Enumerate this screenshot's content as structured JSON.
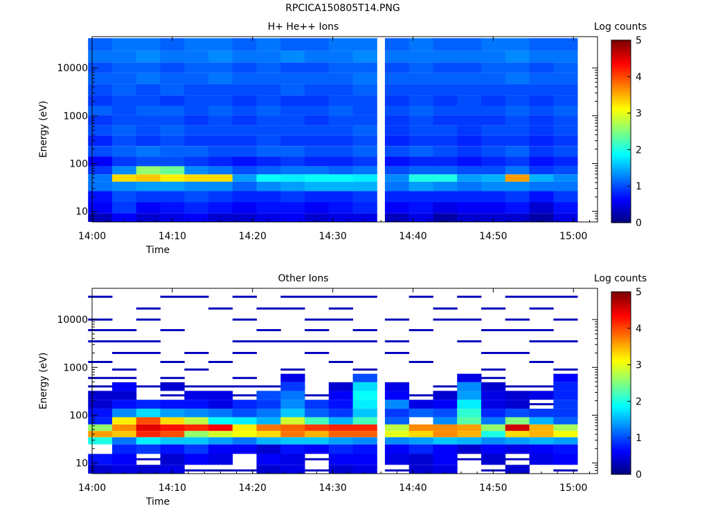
{
  "page": {
    "title": "RPCICA150805T14.PNG"
  },
  "chart_data": [
    {
      "type": "heatmap",
      "title": "H+ He++ Ions",
      "xlabel": "Time",
      "ylabel": "Energy (eV)",
      "colorbar_label": "Log counts",
      "colorbar_ticks": [
        "0",
        "1",
        "2",
        "3",
        "4",
        "5"
      ],
      "colorbar_range": [
        0,
        5
      ],
      "colormap": "jet",
      "x_ticks": [
        "14:00",
        "14:10",
        "14:20",
        "14:30",
        "14:40",
        "14:50",
        "15:00"
      ],
      "x_range": [
        "14:00",
        "15:03"
      ],
      "y_scale": "log",
      "y_range": [
        6,
        45000
      ],
      "y_ticks": [
        "10",
        "100",
        "1000",
        "10000"
      ],
      "time_bins": [
        "14:01",
        "14:04",
        "14:07",
        "14:10",
        "14:13",
        "14:16",
        "14:19",
        "14:22",
        "14:25",
        "14:28",
        "14:31",
        "14:34",
        "14:38",
        "14:41",
        "14:44",
        "14:47",
        "14:50",
        "14:53",
        "14:56",
        "14:59"
      ],
      "energy_bands": [
        {
          "energy": 7,
          "values": [
            0.3,
            0.6,
            0.4,
            0.5,
            0.6,
            0.4,
            0.4,
            0.5,
            0.6,
            0.4,
            0.5,
            0.5,
            0.3,
            0.5,
            0.2,
            0.4,
            0.4,
            0.4,
            0.2,
            0.5
          ]
        },
        {
          "energy": 12,
          "values": [
            0.6,
            0.9,
            0.6,
            0.7,
            0.8,
            0.7,
            0.6,
            0.7,
            0.7,
            0.6,
            0.7,
            0.8,
            0.6,
            0.7,
            0.5,
            0.6,
            0.6,
            0.7,
            0.4,
            0.7
          ]
        },
        {
          "energy": 20,
          "values": [
            0.7,
            1.0,
            0.9,
            0.9,
            1.0,
            0.9,
            0.8,
            0.8,
            0.9,
            0.8,
            0.8,
            0.9,
            0.8,
            0.8,
            0.8,
            0.8,
            0.8,
            0.9,
            0.7,
            0.9
          ]
        },
        {
          "energy": 35,
          "values": [
            1.2,
            1.3,
            1.4,
            1.4,
            1.3,
            1.3,
            1.1,
            1.3,
            1.4,
            1.5,
            1.5,
            1.5,
            1.2,
            1.4,
            1.3,
            1.2,
            1.3,
            1.3,
            1.2,
            1.2
          ]
        },
        {
          "energy": 50,
          "values": [
            1.2,
            3.3,
            3.4,
            3.2,
            3.3,
            3.3,
            1.4,
            1.9,
            1.8,
            1.9,
            1.9,
            1.8,
            1.3,
            2.0,
            2.0,
            1.4,
            1.5,
            3.6,
            1.5,
            1.3
          ]
        },
        {
          "energy": 70,
          "values": [
            0.9,
            1.3,
            2.6,
            2.4,
            1.3,
            1.2,
            1.0,
            1.1,
            1.2,
            1.2,
            1.1,
            1.2,
            1.0,
            1.1,
            1.1,
            1.0,
            1.0,
            1.2,
            0.9,
            1.0
          ]
        },
        {
          "energy": 110,
          "values": [
            0.6,
            0.9,
            1.0,
            1.0,
            0.9,
            0.8,
            0.7,
            0.8,
            0.9,
            0.8,
            0.8,
            0.9,
            0.7,
            0.8,
            0.8,
            0.7,
            0.8,
            0.9,
            0.7,
            0.8
          ]
        },
        {
          "energy": 180,
          "values": [
            1.0,
            1.1,
            1.2,
            1.1,
            1.1,
            1.0,
            1.0,
            1.1,
            1.1,
            1.0,
            1.0,
            1.1,
            1.0,
            1.1,
            1.0,
            0.9,
            1.0,
            1.1,
            0.9,
            1.0
          ]
        },
        {
          "energy": 300,
          "values": [
            0.8,
            1.0,
            0.9,
            1.0,
            0.9,
            0.9,
            0.9,
            1.0,
            0.9,
            0.9,
            0.9,
            1.0,
            0.8,
            0.9,
            0.9,
            0.8,
            0.9,
            0.9,
            0.8,
            0.9
          ]
        },
        {
          "energy": 500,
          "values": [
            1.0,
            1.1,
            1.0,
            1.1,
            1.0,
            1.0,
            1.0,
            1.0,
            1.0,
            1.0,
            1.0,
            1.1,
            0.9,
            1.0,
            1.0,
            0.9,
            1.0,
            1.0,
            0.9,
            1.0
          ]
        },
        {
          "energy": 800,
          "values": [
            0.9,
            1.0,
            1.0,
            1.0,
            0.9,
            1.0,
            0.9,
            1.0,
            1.0,
            0.9,
            1.0,
            1.0,
            0.9,
            1.0,
            0.9,
            0.9,
            0.9,
            1.0,
            0.9,
            1.0
          ]
        },
        {
          "energy": 1300,
          "values": [
            1.1,
            1.0,
            1.1,
            1.1,
            1.0,
            1.1,
            1.0,
            1.1,
            1.0,
            1.0,
            1.1,
            1.0,
            1.0,
            1.1,
            1.0,
            1.0,
            1.0,
            1.1,
            1.0,
            1.1
          ]
        },
        {
          "energy": 2000,
          "values": [
            0.9,
            1.0,
            1.0,
            0.9,
            1.0,
            1.0,
            0.9,
            1.0,
            0.9,
            0.9,
            1.0,
            1.0,
            0.9,
            1.0,
            0.9,
            1.0,
            0.9,
            1.0,
            0.9,
            1.0
          ]
        },
        {
          "energy": 3500,
          "values": [
            1.0,
            1.1,
            1.0,
            1.1,
            1.0,
            1.0,
            1.0,
            1.0,
            1.1,
            1.0,
            1.0,
            1.1,
            1.0,
            1.0,
            1.0,
            1.0,
            1.0,
            1.0,
            1.0,
            1.0
          ]
        },
        {
          "energy": 6000,
          "values": [
            1.1,
            1.1,
            1.2,
            1.1,
            1.1,
            1.2,
            1.1,
            1.1,
            1.1,
            1.1,
            1.1,
            1.2,
            1.1,
            1.1,
            1.1,
            1.1,
            1.1,
            1.2,
            1.1,
            1.1
          ]
        },
        {
          "energy": 10000,
          "values": [
            1.0,
            1.1,
            1.1,
            1.0,
            1.1,
            1.1,
            1.0,
            1.1,
            1.0,
            1.0,
            1.1,
            1.1,
            1.0,
            1.1,
            1.0,
            1.0,
            1.1,
            1.1,
            1.0,
            1.1
          ]
        },
        {
          "energy": 17000,
          "values": [
            1.2,
            1.2,
            1.3,
            1.2,
            1.2,
            1.3,
            1.2,
            1.2,
            1.3,
            1.2,
            1.2,
            1.3,
            1.2,
            1.2,
            1.2,
            1.2,
            1.2,
            1.3,
            1.2,
            1.2
          ]
        },
        {
          "energy": 30000,
          "values": [
            1.1,
            1.2,
            1.2,
            1.1,
            1.2,
            1.2,
            1.1,
            1.2,
            1.1,
            1.1,
            1.2,
            1.2,
            1.1,
            1.2,
            1.1,
            1.1,
            1.2,
            1.2,
            1.1,
            1.1
          ]
        }
      ]
    },
    {
      "type": "heatmap",
      "title": "Other Ions",
      "xlabel": "Time",
      "ylabel": "Energy (eV)",
      "colorbar_label": "Log counts",
      "colorbar_ticks": [
        "0",
        "1",
        "2",
        "3",
        "4",
        "5"
      ],
      "colorbar_range": [
        0,
        5
      ],
      "colormap": "jet",
      "x_ticks": [
        "14:00",
        "14:10",
        "14:20",
        "14:30",
        "14:40",
        "14:50",
        "15:00"
      ],
      "x_range": [
        "14:00",
        "15:03"
      ],
      "y_scale": "log",
      "y_range": [
        6,
        45000
      ],
      "y_ticks": [
        "10",
        "100",
        "1000",
        "10000"
      ],
      "time_bins": [
        "14:01",
        "14:04",
        "14:07",
        "14:10",
        "14:13",
        "14:16",
        "14:19",
        "14:22",
        "14:25",
        "14:28",
        "14:31",
        "14:34",
        "14:38",
        "14:41",
        "14:44",
        "14:47",
        "14:50",
        "14:53",
        "14:56",
        "14:59"
      ],
      "energy_bands": [
        {
          "energy": 7,
          "values": [
            0.4,
            0.5,
            0.4,
            0.5,
            0.3,
            0.2,
            0.3,
            0.4,
            0.5,
            0.3,
            0.4,
            0.5,
            0.3,
            0.4,
            0.5,
            null,
            0.3,
            0.4,
            null,
            0.3
          ]
        },
        {
          "energy": 12,
          "values": [
            0.7,
            0.6,
            0.3,
            0.4,
            0.6,
            0.5,
            null,
            0.6,
            0.5,
            0.3,
            0.6,
            0.6,
            0.5,
            0.4,
            0.6,
            0.3,
            0.4,
            0.3,
            0.5,
            0.6
          ]
        },
        {
          "energy": 20,
          "values": [
            null,
            0.8,
            0.9,
            0.7,
            0.9,
            0.6,
            0.6,
            0.4,
            0.7,
            0.6,
            0.8,
            0.7,
            0.6,
            0.8,
            0.6,
            0.4,
            0.6,
            0.5,
            0.6,
            0.7
          ]
        },
        {
          "energy": 30,
          "values": [
            2.0,
            1.2,
            1.8,
            1.6,
            1.6,
            1.4,
            1.2,
            1.5,
            1.6,
            1.6,
            1.4,
            1.3,
            1.3,
            1.4,
            1.6,
            1.5,
            1.3,
            1.4,
            1.5,
            1.4
          ]
        },
        {
          "energy": 40,
          "values": [
            3.6,
            3.4,
            4.2,
            4.0,
            2.6,
            2.9,
            3.1,
            3.3,
            3.8,
            3.5,
            3.9,
            3.9,
            3.0,
            3.3,
            3.7,
            3.5,
            2.0,
            3.3,
            3.5,
            3.1
          ]
        },
        {
          "energy": 55,
          "values": [
            2.6,
            3.7,
            4.5,
            4.3,
            4.2,
            4.4,
            3.2,
            3.8,
            3.9,
            4.1,
            4.2,
            4.2,
            2.8,
            3.7,
            3.7,
            3.6,
            2.6,
            4.6,
            3.5,
            2.7
          ]
        },
        {
          "energy": 75,
          "values": [
            0.8,
            3.2,
            4.0,
            3.3,
            2.8,
            1.9,
            1.8,
            1.5,
            2.9,
            2.2,
            1.5,
            2.2,
            1.1,
            null,
            1.3,
            2.3,
            1.2,
            2.5,
            1.5,
            1.1
          ]
        },
        {
          "energy": 110,
          "values": [
            0.7,
            1.3,
            1.7,
            1.4,
            1.3,
            1.2,
            1.0,
            1.2,
            1.6,
            1.1,
            0.9,
            1.6,
            0.9,
            1.1,
            1.0,
            2.1,
            0.8,
            1.0,
            0.9,
            0.9
          ]
        },
        {
          "energy": 170,
          "values": [
            0.4,
            0.7,
            0.8,
            0.7,
            0.7,
            0.5,
            0.8,
            0.9,
            1.3,
            0.9,
            0.7,
            1.8,
            1.3,
            0.5,
            0.6,
            1.8,
            0.5,
            0.4,
            0.3,
            0.9
          ]
        },
        {
          "energy": 260,
          "values": [
            0.4,
            0.4,
            null,
            0.3,
            0.5,
            0.5,
            0.3,
            1.0,
            1.2,
            0.3,
            0.6,
            1.9,
            0.6,
            0.3,
            0.4,
            1.4,
            0.5,
            0.4,
            0.5,
            0.8
          ]
        },
        {
          "energy": 400,
          "values": [
            0.3,
            0.6,
            0.3,
            0.4,
            0.3,
            0.3,
            0.3,
            0.3,
            0.9,
            null,
            0.4,
            1.7,
            0.5,
            null,
            0.3,
            1.3,
            0.4,
            0.3,
            0.3,
            0.8
          ]
        },
        {
          "energy": 600,
          "values": [
            0.3,
            0.3,
            null,
            0.3,
            null,
            null,
            0.3,
            null,
            0.5,
            null,
            null,
            1.0,
            null,
            null,
            null,
            0.5,
            0.3,
            null,
            null,
            0.6
          ]
        },
        {
          "energy": 900,
          "values": [
            null,
            0.3,
            null,
            null,
            0.3,
            null,
            null,
            null,
            0.3,
            null,
            null,
            0.3,
            null,
            null,
            null,
            null,
            0.3,
            null,
            null,
            0.3
          ]
        },
        {
          "energy": 1300,
          "values": [
            0.3,
            null,
            null,
            0.3,
            null,
            0.3,
            null,
            null,
            null,
            null,
            0.3,
            null,
            null,
            0.3,
            null,
            null,
            null,
            null,
            0.3,
            null
          ]
        },
        {
          "energy": 2000,
          "values": [
            null,
            0.3,
            0.3,
            null,
            0.3,
            null,
            0.3,
            null,
            null,
            0.3,
            null,
            null,
            0.3,
            null,
            null,
            null,
            0.3,
            0.3,
            null,
            null
          ]
        },
        {
          "energy": 3500,
          "values": [
            0.3,
            0.3,
            0.3,
            null,
            null,
            null,
            0.3,
            0.3,
            0.3,
            0.3,
            0.3,
            0.3,
            0.3,
            null,
            null,
            0.3,
            null,
            null,
            0.3,
            0.3
          ]
        },
        {
          "energy": 6000,
          "values": [
            0.3,
            0.3,
            null,
            0.3,
            null,
            null,
            null,
            0.3,
            null,
            0.3,
            null,
            0.3,
            null,
            0.3,
            null,
            null,
            0.3,
            0.3,
            0.3,
            null
          ]
        },
        {
          "energy": 10000,
          "values": [
            0.3,
            null,
            0.3,
            null,
            null,
            null,
            0.3,
            null,
            null,
            0.3,
            0.3,
            null,
            0.3,
            null,
            0.3,
            0.3,
            null,
            0.3,
            null,
            0.3
          ]
        },
        {
          "energy": 17000,
          "values": [
            null,
            null,
            0.3,
            null,
            null,
            0.3,
            null,
            0.3,
            0.3,
            null,
            0.3,
            null,
            null,
            null,
            0.3,
            null,
            0.3,
            null,
            0.3,
            null
          ]
        },
        {
          "energy": 30000,
          "values": [
            0.3,
            null,
            null,
            0.3,
            0.3,
            null,
            0.3,
            null,
            0.3,
            0.3,
            0.3,
            0.3,
            null,
            0.3,
            null,
            0.3,
            null,
            0.3,
            0.3,
            0.3
          ]
        }
      ]
    }
  ]
}
